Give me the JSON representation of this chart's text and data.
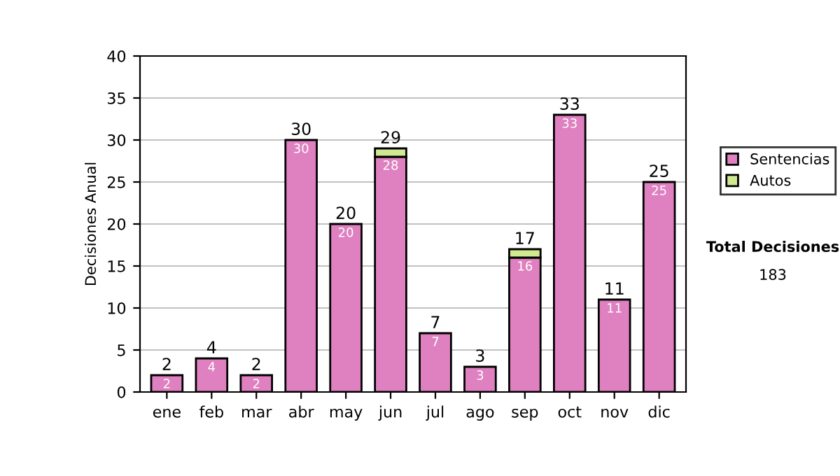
{
  "chart_data": {
    "type": "bar",
    "stacked": true,
    "ylabel": "Decisiones Anual",
    "categories": [
      "ene",
      "feb",
      "mar",
      "abr",
      "may",
      "jun",
      "jul",
      "ago",
      "sep",
      "oct",
      "nov",
      "dic"
    ],
    "series": [
      {
        "name": "Sentencias",
        "color": "#df80c0",
        "values": [
          2,
          4,
          2,
          30,
          20,
          28,
          7,
          3,
          16,
          33,
          11,
          25
        ],
        "value_labels": [
          "2",
          "4",
          "2",
          "30",
          "20",
          "28",
          "7",
          "3",
          "16",
          "33",
          "11",
          "25"
        ]
      },
      {
        "name": "Autos",
        "color": "#d0e890",
        "values": [
          null,
          null,
          null,
          null,
          null,
          1,
          null,
          null,
          1,
          null,
          null,
          null
        ]
      }
    ],
    "totals": [
      "2",
      "4",
      "2",
      "30",
      "20",
      "29",
      "7",
      "3",
      "17",
      "33",
      "11",
      "25"
    ],
    "ylim": [
      0,
      40
    ],
    "yticks": [
      0,
      5,
      10,
      15,
      20,
      25,
      30,
      35,
      40
    ],
    "grid": "y",
    "legend": "right",
    "annotations": [
      "Total Decisiones",
      "183"
    ]
  }
}
